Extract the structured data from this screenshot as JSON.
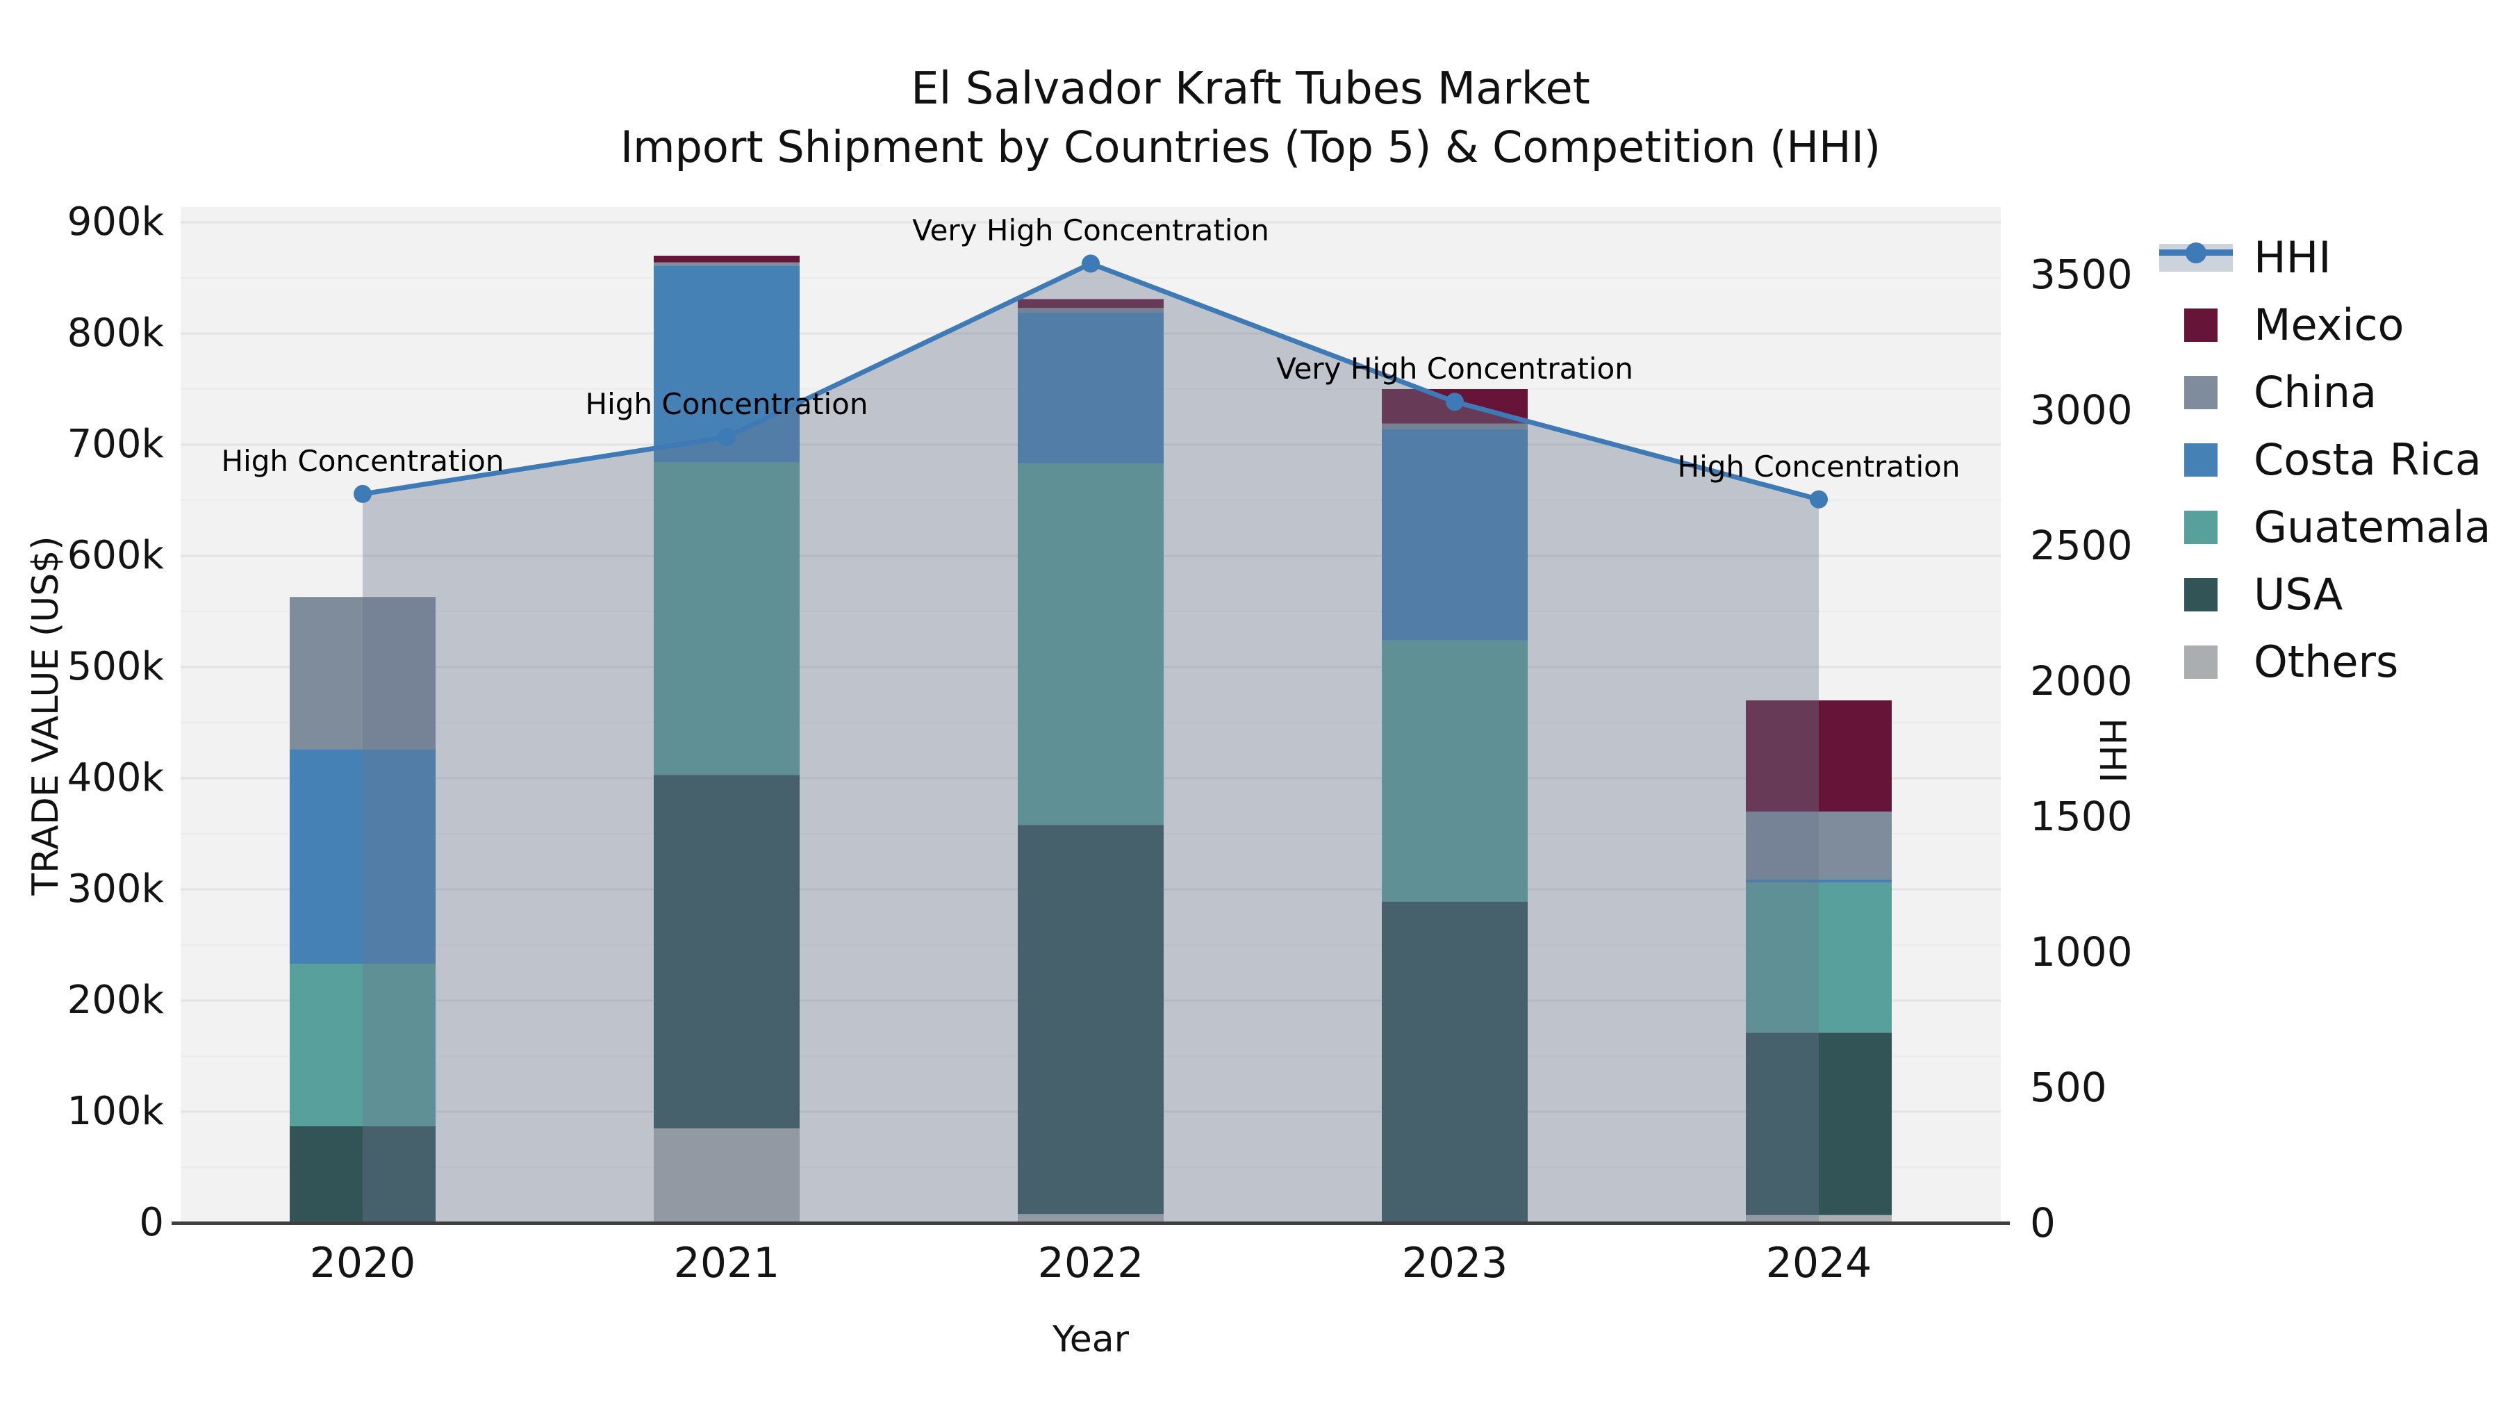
{
  "title": {
    "line1": "El Salvador Kraft Tubes Market",
    "line2": "Import Shipment by Countries (Top 5) & Competition (HHI)"
  },
  "axes": {
    "left": {
      "label": "TRADE VALUE (US$)",
      "ticks": [
        "0",
        "100k",
        "200k",
        "300k",
        "400k",
        "500k",
        "600k",
        "700k",
        "800k",
        "900k"
      ]
    },
    "right": {
      "label": "HHI",
      "ticks": [
        "0",
        "500",
        "1000",
        "1500",
        "2000",
        "2500",
        "3000",
        "3500"
      ]
    },
    "x": {
      "label": "Year",
      "ticks": [
        "2020",
        "2021",
        "2022",
        "2023",
        "2024"
      ]
    }
  },
  "legend": {
    "items": [
      "HHI",
      "Mexico",
      "China",
      "Costa Rica",
      "Guatemala",
      "USA",
      "Others"
    ]
  },
  "colors": {
    "hhi_line": "#3E7AB5",
    "hhi_area_fill": "rgba(105,118,143,0.38)",
    "hhi_legend_band": "#CCD3DC",
    "plot_background": "#F2F2F2",
    "grid_major": "#E3E3E3",
    "grid_minor": "#EDEDED"
  },
  "chart_data": {
    "type": "combo: stacked-bar (left axis) + line with area fill (right axis)",
    "title": "El Salvador Kraft Tubes Market",
    "subtitle": "Import Shipment by Countries (Top 5) & Competition (HHI)",
    "categories": [
      "2020",
      "2021",
      "2022",
      "2023",
      "2024"
    ],
    "xlabel": "Year",
    "bar_value_unit": "US$",
    "left_axis": {
      "label": "TRADE VALUE (US$)",
      "min": 0,
      "max": 900000,
      "tick_step": 100000,
      "minor_step": 50000
    },
    "right_axis": {
      "label": "HHI",
      "min": 0,
      "max": 3500,
      "tick_step": 500
    },
    "grid": "horizontal",
    "legend_position": "right",
    "stack_order_bottom_to_top": [
      "Others",
      "USA",
      "Guatemala",
      "Costa Rica",
      "China",
      "Mexico"
    ],
    "series": [
      {
        "name": "Mexico",
        "color": "#661538",
        "values": [
          0,
          6000,
          8000,
          31000,
          100000
        ]
      },
      {
        "name": "China",
        "color": "#7E8C9B",
        "values": [
          137000,
          3000,
          4000,
          5000,
          61000
        ]
      },
      {
        "name": "Costa Rica",
        "color": "#4581B5",
        "values": [
          193000,
          177000,
          136000,
          190000,
          3000
        ]
      },
      {
        "name": "Guatemala",
        "color": "#58A09C",
        "values": [
          146000,
          281000,
          325000,
          235000,
          135000
        ]
      },
      {
        "name": "USA",
        "color": "#335457",
        "values": [
          87000,
          318000,
          350000,
          289000,
          164000
        ]
      },
      {
        "name": "Others",
        "color": "#ABAEB0",
        "values": [
          0,
          85000,
          8000,
          0,
          7000
        ]
      }
    ],
    "bar_totals": [
      563000,
      870000,
      831000,
      750000,
      470000
    ],
    "line_series": {
      "name": "HHI",
      "values": [
        2690,
        2900,
        3540,
        3030,
        2670
      ]
    },
    "annotations": [
      {
        "category": "2020",
        "text": "High Concentration"
      },
      {
        "category": "2021",
        "text": "High Concentration"
      },
      {
        "category": "2022",
        "text": "Very High Concentration"
      },
      {
        "category": "2023",
        "text": "Very High Concentration"
      },
      {
        "category": "2024",
        "text": "High Concentration"
      }
    ]
  }
}
